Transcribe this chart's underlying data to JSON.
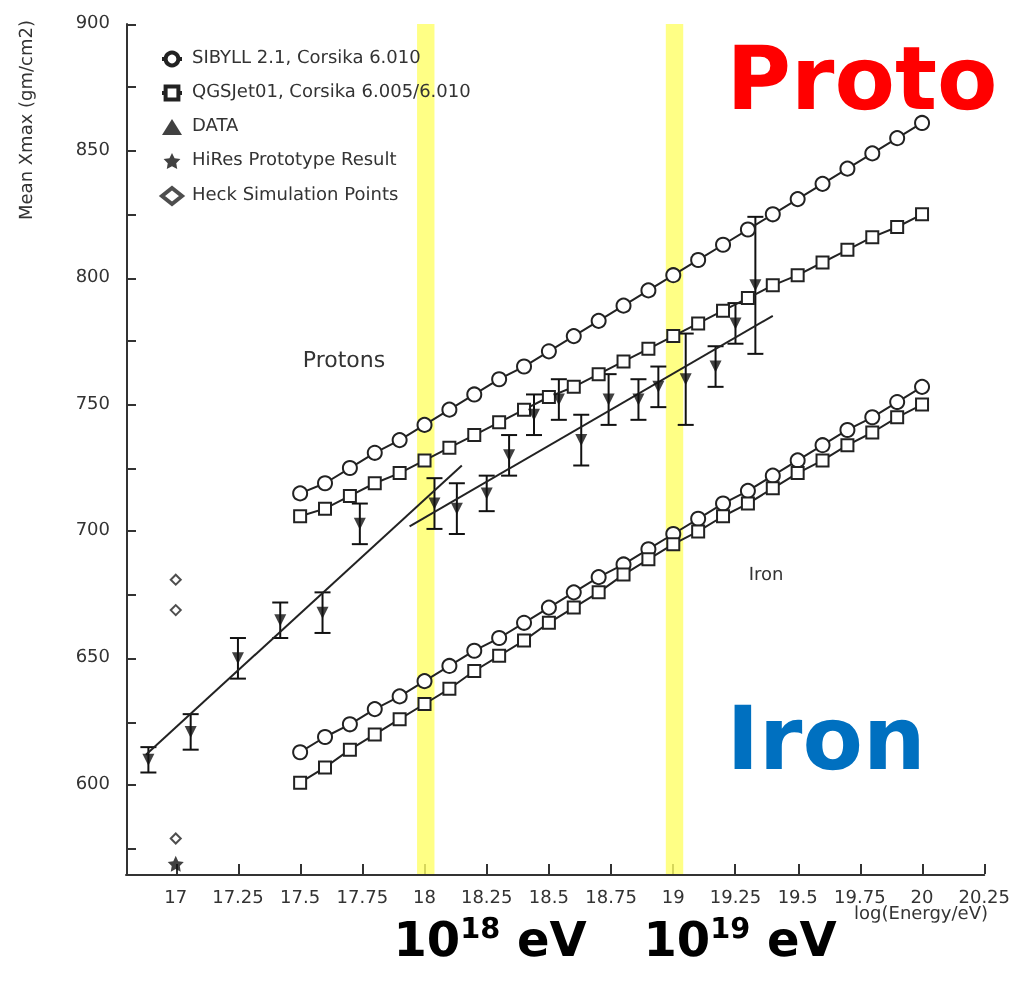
{
  "chart_data": {
    "type": "line",
    "xlabel": "log(Energy/eV)",
    "ylabel": "Mean Xmax (gm/cm2)",
    "xlim": [
      16.8,
      20.25
    ],
    "xticks": [
      17,
      17.25,
      17.5,
      17.75,
      18,
      18.25,
      18.5,
      18.75,
      19,
      19.25,
      19.5,
      19.75,
      20,
      20.25
    ],
    "ylim": [
      565,
      900
    ],
    "yticks": [
      {
        "value": 575,
        "label": null
      },
      600,
      {
        "value": 625,
        "label": null
      },
      650,
      {
        "value": 675,
        "label": null
      },
      700,
      {
        "value": 725,
        "label": null
      },
      750,
      {
        "value": 775,
        "label": null
      },
      800,
      {
        "value": 825,
        "label": null
      },
      850,
      {
        "value": 875,
        "label": null
      },
      900
    ],
    "grid": false,
    "legend": "top left",
    "series": [
      {
        "name": "SIBYLL 2.1, Corsika 6.010",
        "marker": "circle",
        "color": "#222222",
        "x": [
          17.5,
          17.6,
          17.7,
          17.8,
          17.9,
          18.0,
          18.1,
          18.2,
          18.3,
          18.4,
          18.5,
          18.6,
          18.7,
          18.8,
          18.9,
          19.0,
          19.1,
          19.2,
          19.3,
          19.4,
          19.5,
          19.6,
          19.7,
          19.8,
          19.9,
          20.0
        ],
        "values": [
          715,
          719,
          725,
          731,
          736,
          742,
          748,
          754,
          760,
          765,
          771,
          777,
          783,
          789,
          795,
          801,
          807,
          813,
          819,
          825,
          831,
          837,
          843,
          849,
          855,
          861
        ]
      },
      {
        "name": "QGSJet01, Corsika 6.005/6.010",
        "marker": "square",
        "color": "#222222",
        "x": [
          17.5,
          17.6,
          17.7,
          17.8,
          17.9,
          18.0,
          18.1,
          18.2,
          18.3,
          18.4,
          18.5,
          18.6,
          18.7,
          18.8,
          18.9,
          19.0,
          19.1,
          19.2,
          19.3,
          19.4,
          19.5,
          19.6,
          19.7,
          19.8,
          19.9,
          20.0
        ],
        "values": [
          706,
          709,
          714,
          719,
          723,
          728,
          733,
          738,
          743,
          748,
          753,
          757,
          762,
          767,
          772,
          777,
          782,
          787,
          792,
          797,
          801,
          806,
          811,
          816,
          820,
          825
        ]
      },
      {
        "marker": "circle",
        "color": "#222222",
        "x": [
          17.5,
          17.6,
          17.7,
          17.8,
          17.9,
          18.0,
          18.1,
          18.2,
          18.3,
          18.4,
          18.5,
          18.6,
          18.7,
          18.8,
          18.9,
          19.0,
          19.1,
          19.2,
          19.3,
          19.4,
          19.5,
          19.6,
          19.7,
          19.8,
          19.9,
          20.0
        ],
        "values": [
          613,
          619,
          624,
          630,
          635,
          641,
          647,
          653,
          658,
          664,
          670,
          676,
          682,
          687,
          693,
          699,
          705,
          711,
          716,
          722,
          728,
          734,
          740,
          745,
          751,
          757
        ]
      },
      {
        "marker": "square",
        "color": "#222222",
        "x": [
          17.5,
          17.6,
          17.7,
          17.8,
          17.9,
          18.0,
          18.1,
          18.2,
          18.3,
          18.4,
          18.5,
          18.6,
          18.7,
          18.8,
          18.9,
          19.0,
          19.1,
          19.2,
          19.3,
          19.4,
          19.5,
          19.6,
          19.7,
          19.8,
          19.9,
          20.0
        ],
        "values": [
          601,
          607,
          614,
          620,
          626,
          632,
          638,
          645,
          651,
          657,
          664,
          670,
          676,
          683,
          689,
          695,
          700,
          706,
          711,
          717,
          723,
          728,
          734,
          739,
          745,
          750
        ]
      },
      {
        "name": "DATA",
        "type": "scatter",
        "marker": "triangle",
        "color": "#111111",
        "x": [
          16.89,
          17.06,
          17.25,
          17.42,
          17.59,
          17.74,
          18.04,
          18.13,
          18.25,
          18.34,
          18.44,
          18.54,
          18.63,
          18.74,
          18.86,
          18.94,
          19.05,
          19.17,
          19.25,
          19.33
        ],
        "values": [
          610,
          621,
          650,
          665,
          668,
          703,
          711,
          709,
          715,
          730,
          746,
          752,
          736,
          752,
          752,
          757,
          760,
          765,
          782,
          797
        ],
        "errors": [
          5,
          7,
          8,
          7,
          8,
          8,
          10,
          10,
          7,
          8,
          8,
          8,
          10,
          10,
          8,
          8,
          18,
          8,
          8,
          27
        ]
      },
      {
        "name": "HiRes Prototype Result",
        "type": "scatter",
        "marker": "star",
        "color": "#111111",
        "x": [
          17.0
        ],
        "values": [
          569
        ]
      },
      {
        "name": "Heck Simulation Points",
        "type": "scatter",
        "marker": "diamond",
        "color": "#222222",
        "x": [
          17.0,
          17.0,
          17.0
        ],
        "values": [
          579,
          669,
          681
        ]
      },
      {
        "marker": "none",
        "color": "#222222",
        "x": [
          16.88,
          18.15
        ],
        "values": [
          612,
          726
        ]
      },
      {
        "marker": "none",
        "color": "#222222",
        "x": [
          17.94,
          19.4
        ],
        "values": [
          702,
          785
        ]
      }
    ],
    "bands": [
      {
        "axis": "x",
        "from": 17.97,
        "to": 18.04,
        "color": "#ffff66"
      },
      {
        "axis": "x",
        "from": 18.97,
        "to": 19.04,
        "color": "#ffff66"
      }
    ],
    "annotations": [
      "Protons",
      "Iron",
      "Proto",
      "Iron",
      "10$^{18}$ eV",
      "10$^{19}$ eV"
    ]
  }
}
